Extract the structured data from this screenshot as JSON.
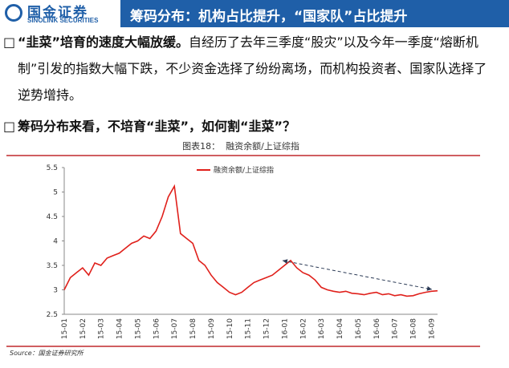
{
  "header": {
    "logo_cn": "国金证券",
    "logo_en": "SINOLINK SECURITIES",
    "title": "筹码分布：机构占比提升，“国家队”占比提升"
  },
  "bullets": [
    {
      "bold": "“韭菜”培育的速度大幅放缓。",
      "text": "自经历了去年三季度“股灾”以及今年一季度“熔断机制”引发的指数大幅下跌，不少资金选择了纷纷离场，而机构投资者、国家队选择了逆势增持。"
    },
    {
      "bold": "筹码分布来看，不培育“韭菜”，如何割“韭菜”？",
      "text": ""
    }
  ],
  "chart_data": {
    "type": "line",
    "title": "图表18：  融资余额/上证综指",
    "categories": [
      "15-01",
      null,
      null,
      "15-02",
      null,
      null,
      "15-03",
      null,
      null,
      "15-04",
      null,
      null,
      "15-05",
      null,
      null,
      "15-06",
      null,
      null,
      "15-07",
      null,
      null,
      "15-08",
      null,
      null,
      "15-09",
      null,
      null,
      "15-10",
      null,
      null,
      "15-11",
      null,
      null,
      "15-12",
      null,
      null,
      "16-01",
      null,
      null,
      "16-02",
      null,
      null,
      "16-03",
      null,
      null,
      "16-04",
      null,
      null,
      "16-05",
      null,
      null,
      "16-06",
      null,
      null,
      "16-07",
      null,
      null,
      "16-08",
      null,
      null,
      "16-09",
      null
    ],
    "series": [
      {
        "name": "融资余额/上证综指",
        "color": "#e0201b",
        "values": [
          3.0,
          3.25,
          3.35,
          3.45,
          3.3,
          3.55,
          3.5,
          3.65,
          3.7,
          3.75,
          3.85,
          3.95,
          4.0,
          4.1,
          4.05,
          4.2,
          4.5,
          4.9,
          5.12,
          4.15,
          4.05,
          3.95,
          3.6,
          3.5,
          3.3,
          3.15,
          3.05,
          2.95,
          2.9,
          2.95,
          3.05,
          3.15,
          3.2,
          3.25,
          3.3,
          3.4,
          3.5,
          3.6,
          3.45,
          3.35,
          3.3,
          3.2,
          3.05,
          3.0,
          2.97,
          2.95,
          2.97,
          2.93,
          2.92,
          2.9,
          2.93,
          2.95,
          2.9,
          2.92,
          2.88,
          2.9,
          2.87,
          2.88,
          2.92,
          2.95,
          2.97,
          2.98
        ]
      }
    ],
    "ylim": [
      2.5,
      5.5
    ],
    "yticks": [
      2.5,
      3,
      3.5,
      4,
      4.5,
      5,
      5.5
    ],
    "legend": "top",
    "source": "Source：国金证券研究所"
  }
}
